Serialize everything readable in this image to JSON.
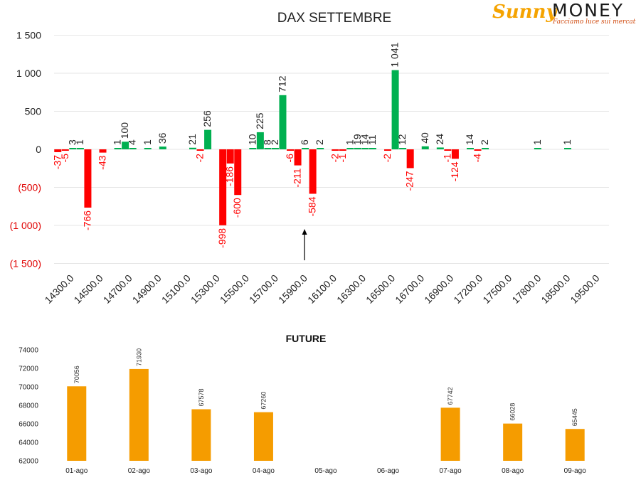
{
  "logo": {
    "brand": "Sunny",
    "brand2": "MONEY",
    "tagline": "Facciamo luce sui mercati"
  },
  "colors": {
    "positive": "#00b050",
    "negative": "#ff0000",
    "future": "#f59c00",
    "grid": "#e6e6e6",
    "axis_neg": "#e00000"
  },
  "chart_data": [
    {
      "type": "bar",
      "title": "DAX SETTEMBRE",
      "ylim": [
        -1500,
        1500
      ],
      "y_ticks": [
        {
          "v": 1500,
          "label": "1 500"
        },
        {
          "v": 1000,
          "label": "1 000"
        },
        {
          "v": 500,
          "label": "500"
        },
        {
          "v": 0,
          "label": "0"
        },
        {
          "v": -500,
          "label": "(500)"
        },
        {
          "v": -1000,
          "label": "(1 000)"
        },
        {
          "v": -1500,
          "label": "(1 500)"
        }
      ],
      "x_tick_labels": [
        "14300.0",
        "14500.0",
        "14700.0",
        "14900.0",
        "15100.0",
        "15300.0",
        "15500.0",
        "15700.0",
        "15900.0",
        "16100.0",
        "16300.0",
        "16500.0",
        "16700.0",
        "16900.0",
        "17200.0",
        "17500.0",
        "17800.0",
        "18500.0",
        "19500.0"
      ],
      "bars": [
        {
          "slot": 0,
          "value": -37,
          "label": "-37"
        },
        {
          "slot": 1,
          "value": -5,
          "label": "-5"
        },
        {
          "slot": 2,
          "value": 3,
          "label": "3"
        },
        {
          "slot": 3,
          "value": 1,
          "label": "1"
        },
        {
          "slot": 4,
          "value": -766,
          "label": "-766"
        },
        {
          "slot": 6,
          "value": -43,
          "label": "-43"
        },
        {
          "slot": 8,
          "value": 1,
          "label": "1"
        },
        {
          "slot": 9,
          "value": 100,
          "label": "100"
        },
        {
          "slot": 10,
          "value": 4,
          "label": "4"
        },
        {
          "slot": 12,
          "value": 1,
          "label": "1"
        },
        {
          "slot": 14,
          "value": 36,
          "label": "36"
        },
        {
          "slot": 18,
          "value": 21,
          "label": "21"
        },
        {
          "slot": 19,
          "value": -2,
          "label": "-2"
        },
        {
          "slot": 20,
          "value": 256,
          "label": "256"
        },
        {
          "slot": 22,
          "value": -998,
          "label": "-998"
        },
        {
          "slot": 23,
          "value": -186,
          "label": "-186"
        },
        {
          "slot": 24,
          "value": -600,
          "label": "-600"
        },
        {
          "slot": 26,
          "value": 10,
          "label": "10"
        },
        {
          "slot": 27,
          "value": 225,
          "label": "225"
        },
        {
          "slot": 28,
          "value": 8,
          "label": "8"
        },
        {
          "slot": 29,
          "value": 2,
          "label": "2"
        },
        {
          "slot": 30,
          "value": 712,
          "label": "712"
        },
        {
          "slot": 31,
          "value": -6,
          "label": "-6"
        },
        {
          "slot": 32,
          "value": -211,
          "label": "-211"
        },
        {
          "slot": 33,
          "value": 6,
          "label": "6"
        },
        {
          "slot": 34,
          "value": -584,
          "label": "-584"
        },
        {
          "slot": 35,
          "value": 2,
          "label": "2"
        },
        {
          "slot": 37,
          "value": -2,
          "label": "-2"
        },
        {
          "slot": 38,
          "value": -1,
          "label": "-1"
        },
        {
          "slot": 39,
          "value": 1,
          "label": "1"
        },
        {
          "slot": 40,
          "value": 19,
          "label": "19"
        },
        {
          "slot": 41,
          "value": 14,
          "label": "14"
        },
        {
          "slot": 42,
          "value": 11,
          "label": "11"
        },
        {
          "slot": 44,
          "value": -2,
          "label": "-2"
        },
        {
          "slot": 45,
          "value": 1041,
          "label": "1 041"
        },
        {
          "slot": 46,
          "value": 12,
          "label": "12"
        },
        {
          "slot": 47,
          "value": -247,
          "label": "-247"
        },
        {
          "slot": 49,
          "value": 40,
          "label": "40"
        },
        {
          "slot": 51,
          "value": 24,
          "label": "24"
        },
        {
          "slot": 52,
          "value": -1,
          "label": "-1"
        },
        {
          "slot": 53,
          "value": -124,
          "label": "-124"
        },
        {
          "slot": 55,
          "value": 14,
          "label": "14"
        },
        {
          "slot": 56,
          "value": -4,
          "label": "-4"
        },
        {
          "slot": 57,
          "value": 2,
          "label": "2"
        },
        {
          "slot": 64,
          "value": 1,
          "label": "1"
        },
        {
          "slot": 68,
          "value": 1,
          "label": "1"
        }
      ],
      "annotations": [
        {
          "type": "arrow",
          "at_slot": 33,
          "direction": "up"
        }
      ],
      "grid": true
    },
    {
      "type": "bar",
      "title": "FUTURE",
      "categories": [
        "01-ago",
        "02-ago",
        "03-ago",
        "04-ago",
        "05-ago",
        "06-ago",
        "07-ago",
        "08-ago",
        "09-ago"
      ],
      "values": [
        70056,
        71930,
        67578,
        67260,
        null,
        null,
        67742,
        66028,
        65445
      ],
      "value_labels": [
        "70056",
        "71930",
        "67578",
        "67260",
        "",
        "",
        "67742",
        "66028",
        "65445"
      ],
      "ylim": [
        62000,
        74000
      ],
      "y_ticks": [
        {
          "v": 74000,
          "label": "74000"
        },
        {
          "v": 72000,
          "label": "72000"
        },
        {
          "v": 70000,
          "label": "70000"
        },
        {
          "v": 68000,
          "label": "68000"
        },
        {
          "v": 66000,
          "label": "66000"
        },
        {
          "v": 64000,
          "label": "64000"
        },
        {
          "v": 62000,
          "label": "62000"
        }
      ],
      "grid": false
    }
  ]
}
